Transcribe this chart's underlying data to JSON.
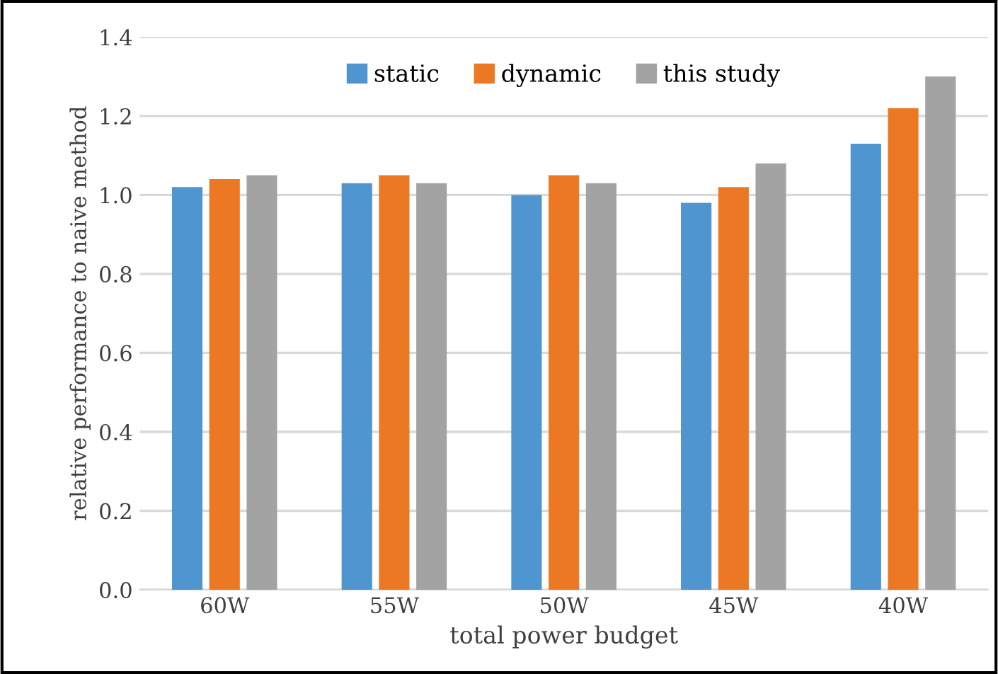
{
  "chart_data": {
    "type": "bar",
    "xlabel": "total power budget",
    "ylabel": "relative performance to naive method",
    "categories": [
      "60W",
      "55W",
      "50W",
      "45W",
      "40W"
    ],
    "series": [
      {
        "name": "static",
        "color": "#4f95d0",
        "values": [
          1.02,
          1.03,
          1.0,
          0.98,
          1.13
        ]
      },
      {
        "name": "dynamic",
        "color": "#ec7824",
        "values": [
          1.04,
          1.05,
          1.05,
          1.02,
          1.22
        ]
      },
      {
        "name": "this study",
        "color": "#a3a3a3",
        "values": [
          1.05,
          1.03,
          1.03,
          1.08,
          1.3
        ]
      }
    ],
    "ylim": [
      0,
      1.4
    ],
    "yticks": [
      {
        "value": 0,
        "label": "0.0"
      },
      0.2,
      0.4,
      0.6,
      0.8,
      {
        "value": 1,
        "label": "1.0"
      },
      1.2,
      1.4
    ],
    "grid": "y",
    "legend": "top"
  }
}
